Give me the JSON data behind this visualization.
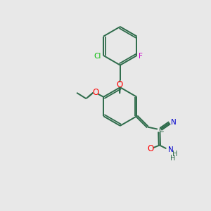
{
  "background_color": "#e8e8e8",
  "bond_color": "#2d6b4a",
  "atom_colors": {
    "O": "#ff0000",
    "N": "#0000cc",
    "Cl": "#00bb00",
    "F": "#cc00cc",
    "C": "#2d6b4a",
    "default": "#2d6b4a"
  },
  "figsize": [
    3.0,
    3.0
  ],
  "dpi": 100,
  "lw": 1.4,
  "fs": 7.5
}
